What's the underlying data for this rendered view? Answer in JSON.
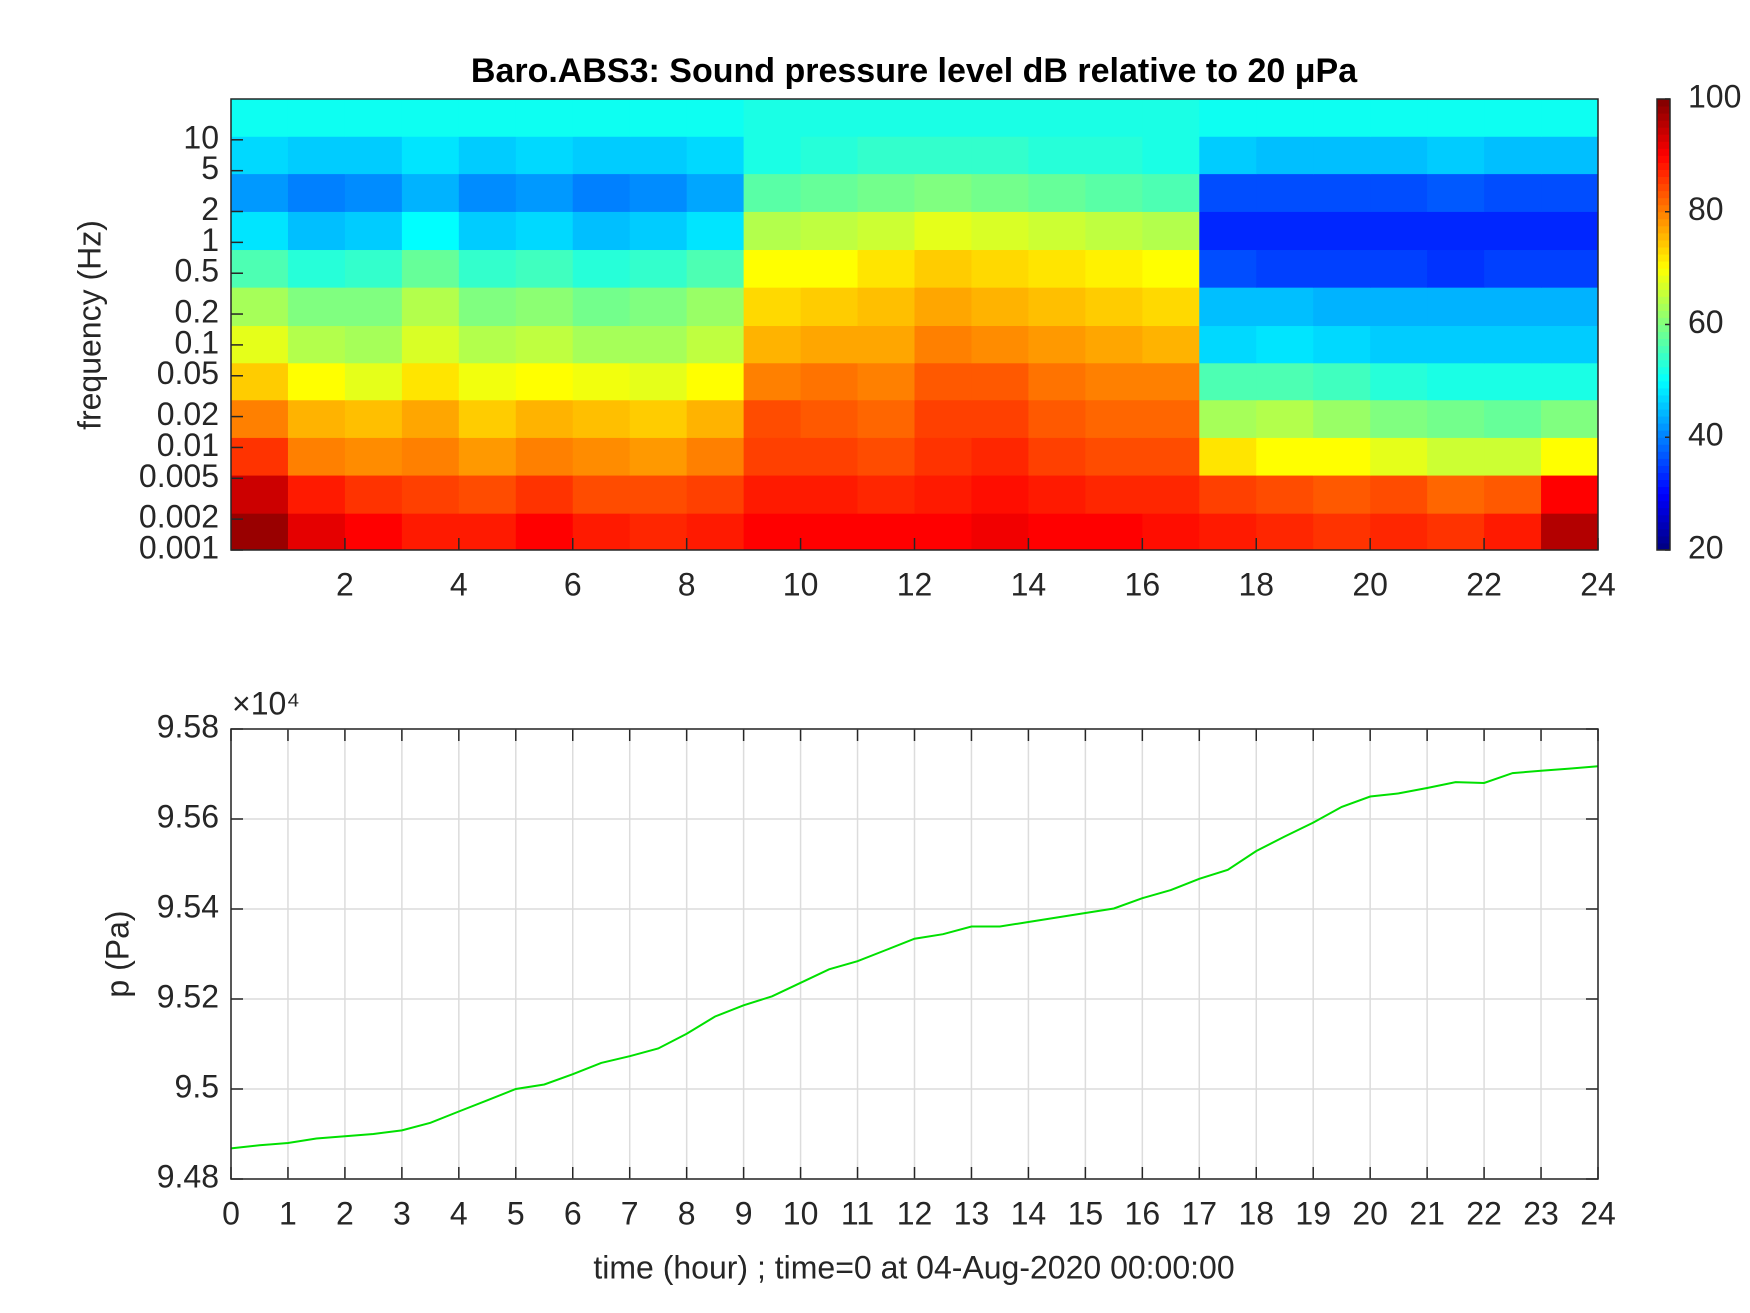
{
  "chart_data": [
    {
      "type": "heatmap",
      "title": "Baro.ABS3: Sound pressure level dB relative to 20 μPa",
      "ylabel": "frequency (Hz)",
      "x": [
        0.5,
        1.5,
        2.5,
        3.5,
        4.5,
        5.5,
        6.5,
        7.5,
        8.5,
        9.5,
        10.5,
        11.5,
        12.5,
        13.5,
        14.5,
        15.5,
        16.5,
        17.5,
        18.5,
        19.5,
        20.5,
        21.5,
        22.5,
        23.5
      ],
      "y": [
        0.0015,
        0.0035,
        0.0083,
        0.019,
        0.045,
        0.1,
        0.24,
        0.56,
        1.3,
        3.1,
        7.1,
        16.6
      ],
      "values": [
        [
          98,
          92,
          90,
          88,
          88,
          90,
          88,
          87,
          88,
          90,
          90,
          90,
          90,
          91,
          90,
          90,
          89,
          88,
          87,
          86,
          87,
          86,
          88,
          96
        ],
        [
          94,
          88,
          86,
          85,
          84,
          86,
          84,
          84,
          85,
          88,
          88,
          87,
          88,
          89,
          88,
          87,
          87,
          85,
          84,
          83,
          84,
          82,
          83,
          90
        ],
        [
          86,
          80,
          79,
          80,
          78,
          80,
          79,
          78,
          80,
          85,
          85,
          84,
          86,
          87,
          85,
          84,
          84,
          72,
          70,
          70,
          68,
          66,
          66,
          70
        ],
        [
          80,
          76,
          75,
          77,
          74,
          76,
          75,
          74,
          76,
          84,
          83,
          82,
          85,
          85,
          83,
          82,
          82,
          63,
          64,
          62,
          60,
          59,
          58,
          60
        ],
        [
          74,
          70,
          68,
          72,
          69,
          70,
          69,
          68,
          70,
          80,
          81,
          80,
          83,
          83,
          81,
          80,
          80,
          56,
          56,
          55,
          53,
          52,
          52,
          52
        ],
        [
          68,
          64,
          63,
          67,
          64,
          65,
          63,
          63,
          65,
          76,
          77,
          77,
          80,
          79,
          78,
          77,
          76,
          47,
          48,
          47,
          46,
          46,
          46,
          46
        ],
        [
          63,
          60,
          60,
          64,
          60,
          61,
          59,
          60,
          62,
          73,
          74,
          75,
          77,
          76,
          75,
          74,
          73,
          45,
          45,
          44,
          44,
          44,
          44,
          44
        ],
        [
          56,
          53,
          54,
          58,
          54,
          55,
          53,
          54,
          56,
          70,
          70,
          72,
          74,
          73,
          72,
          71,
          70,
          36,
          35,
          35,
          35,
          34,
          35,
          35
        ],
        [
          48,
          45,
          46,
          50,
          46,
          47,
          45,
          46,
          48,
          64,
          65,
          66,
          68,
          67,
          66,
          65,
          64,
          33,
          33,
          33,
          33,
          33,
          33,
          33
        ],
        [
          42,
          40,
          41,
          44,
          41,
          42,
          40,
          41,
          43,
          57,
          58,
          59,
          60,
          59,
          58,
          57,
          56,
          36,
          36,
          36,
          36,
          37,
          36,
          36
        ],
        [
          47,
          46,
          46,
          48,
          46,
          47,
          46,
          46,
          47,
          52,
          53,
          54,
          54,
          54,
          53,
          53,
          52,
          46,
          45,
          45,
          45,
          46,
          45,
          45
        ],
        [
          51,
          51,
          51,
          51,
          51,
          51,
          51,
          51,
          51,
          52,
          52,
          52,
          52,
          52,
          52,
          52,
          52,
          51,
          51,
          51,
          51,
          51,
          51,
          51
        ]
      ],
      "xlim": [
        0,
        24
      ],
      "xticks": [
        2,
        4,
        6,
        8,
        10,
        12,
        14,
        16,
        18,
        20,
        22,
        24
      ],
      "ylim": [
        0.001,
        25
      ],
      "ylog": true,
      "yticks": [
        0.001,
        0.002,
        0.005,
        0.01,
        0.02,
        0.05,
        0.1,
        0.2,
        0.5,
        1,
        2,
        5,
        10
      ],
      "colormap": "jet",
      "clim": [
        20,
        100
      ],
      "cticks": [
        20,
        40,
        60,
        80,
        100
      ]
    },
    {
      "type": "line",
      "xlabel": "time (hour) ; time=0 at 04-Aug-2020 00:00:00",
      "ylabel": "p (Pa)",
      "y_multiplier": "×10⁴",
      "x": [
        0,
        0.5,
        1,
        1.5,
        2,
        2.5,
        3,
        3.5,
        4,
        4.5,
        5,
        5.5,
        6,
        6.5,
        7,
        7.5,
        8,
        8.5,
        9,
        9.5,
        10,
        10.5,
        11,
        11.5,
        12,
        12.5,
        13,
        13.5,
        14,
        14.5,
        15,
        15.5,
        16,
        16.5,
        17,
        17.5,
        18,
        18.5,
        19,
        19.5,
        20,
        20.5,
        21,
        21.5,
        22,
        22.5,
        23,
        23.5,
        24
      ],
      "values": [
        94868,
        94875,
        94880,
        94890,
        94895,
        94900,
        94908,
        94925,
        94950,
        94975,
        95000,
        95010,
        95033,
        95058,
        95073,
        95090,
        95123,
        95161,
        95186,
        95206,
        95236,
        95266,
        95284,
        95309,
        95334,
        95344,
        95361,
        95361,
        95371,
        95381,
        95391,
        95401,
        95424,
        95442,
        95467,
        95487,
        95529,
        95561,
        95592,
        95627,
        95650,
        95657,
        95669,
        95682,
        95680,
        95702,
        95707,
        95712,
        95717
      ],
      "color": "#00e000",
      "xlim": [
        0,
        24
      ],
      "xticks": [
        0,
        1,
        2,
        3,
        4,
        5,
        6,
        7,
        8,
        9,
        10,
        11,
        12,
        13,
        14,
        15,
        16,
        17,
        18,
        19,
        20,
        21,
        22,
        23,
        24
      ],
      "ylim": [
        94800,
        95800
      ],
      "yticks": [
        {
          "value": 94800,
          "label": "9.48"
        },
        {
          "value": 95000,
          "label": "9.5"
        },
        {
          "value": 95200,
          "label": "9.52"
        },
        {
          "value": 95400,
          "label": "9.54"
        },
        {
          "value": 95600,
          "label": "9.56"
        },
        {
          "value": 95800,
          "label": "9.58"
        }
      ],
      "grid": true
    }
  ]
}
